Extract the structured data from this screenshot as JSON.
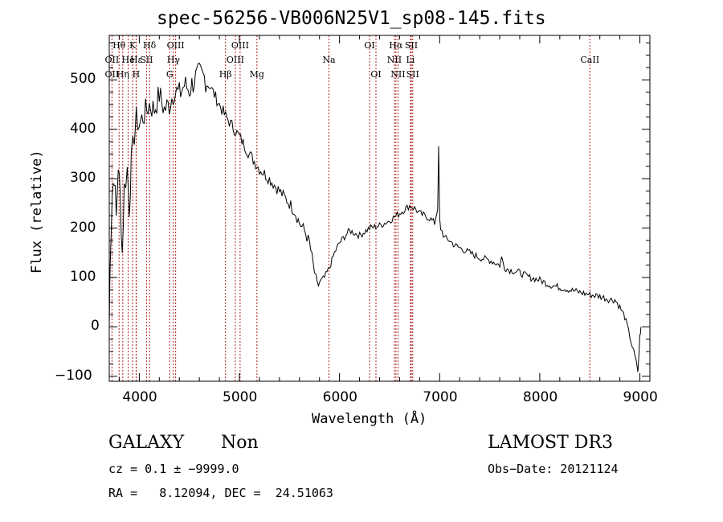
{
  "chart_data": {
    "type": "line",
    "title": "spec-56256-VB006N25V1_sp08-145.fits",
    "xlabel": "Wavelength (Å)",
    "ylabel": "Flux (relative)",
    "xlim": [
      3700,
      9100
    ],
    "ylim": [
      -110,
      590
    ],
    "xticks": [
      4000,
      5000,
      6000,
      7000,
      8000,
      9000
    ],
    "yticks": [
      -100,
      0,
      100,
      200,
      300,
      400,
      500
    ],
    "color": "#000000",
    "line_color": "#b22222",
    "series": [
      {
        "name": "flux",
        "x": [
          3700,
          3710,
          3730,
          3750,
          3770,
          3790,
          3810,
          3830,
          3850,
          3880,
          3900,
          3920,
          3950,
          3970,
          4000,
          4050,
          4100,
          4150,
          4200,
          4250,
          4300,
          4350,
          4400,
          4450,
          4500,
          4550,
          4600,
          4650,
          4700,
          4750,
          4800,
          4850,
          4900,
          4950,
          5000,
          5100,
          5200,
          5300,
          5400,
          5500,
          5550,
          5600,
          5650,
          5700,
          5750,
          5780,
          5800,
          5850,
          5900,
          5950,
          6000,
          6100,
          6200,
          6300,
          6400,
          6500,
          6600,
          6700,
          6750,
          6800,
          6850,
          6900,
          6950,
          6980,
          6990,
          7000,
          7010,
          7050,
          7100,
          7150,
          7200,
          7300,
          7400,
          7500,
          7550,
          7600,
          7620,
          7650,
          7700,
          7800,
          7900,
          8000,
          8100,
          8200,
          8300,
          8400,
          8500,
          8600,
          8700,
          8750,
          8800,
          8850,
          8900,
          8950,
          8980,
          9000,
          9010
        ],
        "y": [
          0,
          150,
          270,
          310,
          220,
          330,
          260,
          150,
          280,
          320,
          240,
          330,
          390,
          420,
          410,
          430,
          450,
          440,
          470,
          440,
          450,
          480,
          470,
          490,
          480,
          500,
          510,
          505,
          490,
          470,
          450,
          430,
          415,
          400,
          385,
          350,
          320,
          300,
          275,
          250,
          235,
          210,
          195,
          170,
          110,
          80,
          90,
          100,
          120,
          150,
          170,
          195,
          185,
          200,
          205,
          215,
          230,
          245,
          240,
          230,
          225,
          220,
          210,
          240,
          360,
          215,
          200,
          180,
          175,
          165,
          160,
          150,
          140,
          135,
          130,
          125,
          140,
          120,
          115,
          110,
          100,
          95,
          85,
          80,
          75,
          70,
          65,
          62,
          55,
          55,
          40,
          20,
          -20,
          -60,
          -90,
          -20,
          0
        ]
      }
    ],
    "lines": [
      {
        "name": "OII",
        "x": 3727,
        "row": 2
      },
      {
        "name": "OII",
        "x": 3727,
        "row": 3
      },
      {
        "name": "Hθ",
        "x": 3798,
        "row": 1
      },
      {
        "name": "Hη",
        "x": 3835,
        "row": 3
      },
      {
        "name": "He",
        "x": 3889,
        "row": 2
      },
      {
        "name": "K",
        "x": 3934,
        "row": 1
      },
      {
        "name": "H",
        "x": 3968,
        "row": 3
      },
      {
        "name": "Hε",
        "x": 3970,
        "row": 2
      },
      {
        "name": "Hδ",
        "x": 4102,
        "row": 1
      },
      {
        "name": "SII",
        "x": 4072,
        "row": 2
      },
      {
        "name": "OIII",
        "x": 4363,
        "row": 1
      },
      {
        "name": "Hγ",
        "x": 4341,
        "row": 2
      },
      {
        "name": "G",
        "x": 4304,
        "row": 3
      },
      {
        "name": "Hβ",
        "x": 4861,
        "row": 3
      },
      {
        "name": "OIII",
        "x": 4959,
        "row": 2
      },
      {
        "name": "OIII",
        "x": 5007,
        "row": 1
      },
      {
        "name": "Mg",
        "x": 5175,
        "row": 3
      },
      {
        "name": "Na",
        "x": 5894,
        "row": 2
      },
      {
        "name": "OI",
        "x": 6300,
        "row": 1
      },
      {
        "name": "OI",
        "x": 6364,
        "row": 3
      },
      {
        "name": "NII",
        "x": 6548,
        "row": 2
      },
      {
        "name": "Hα",
        "x": 6563,
        "row": 1
      },
      {
        "name": "NII",
        "x": 6584,
        "row": 3
      },
      {
        "name": "SII",
        "x": 6717,
        "row": 1
      },
      {
        "name": "Li",
        "x": 6708,
        "row": 2
      },
      {
        "name": "SII",
        "x": 6731,
        "row": 3
      },
      {
        "name": "CaII",
        "x": 8500,
        "row": 2
      }
    ]
  },
  "info": {
    "object_class": "GALAXY",
    "subclass": "Non",
    "survey": "LAMOST DR3",
    "redshift": "cz = 0.1 ± −9999.0",
    "obs_date": "Obs−Date: 20121124",
    "coords": "RA =   8.12094, DEC =  24.51063"
  }
}
